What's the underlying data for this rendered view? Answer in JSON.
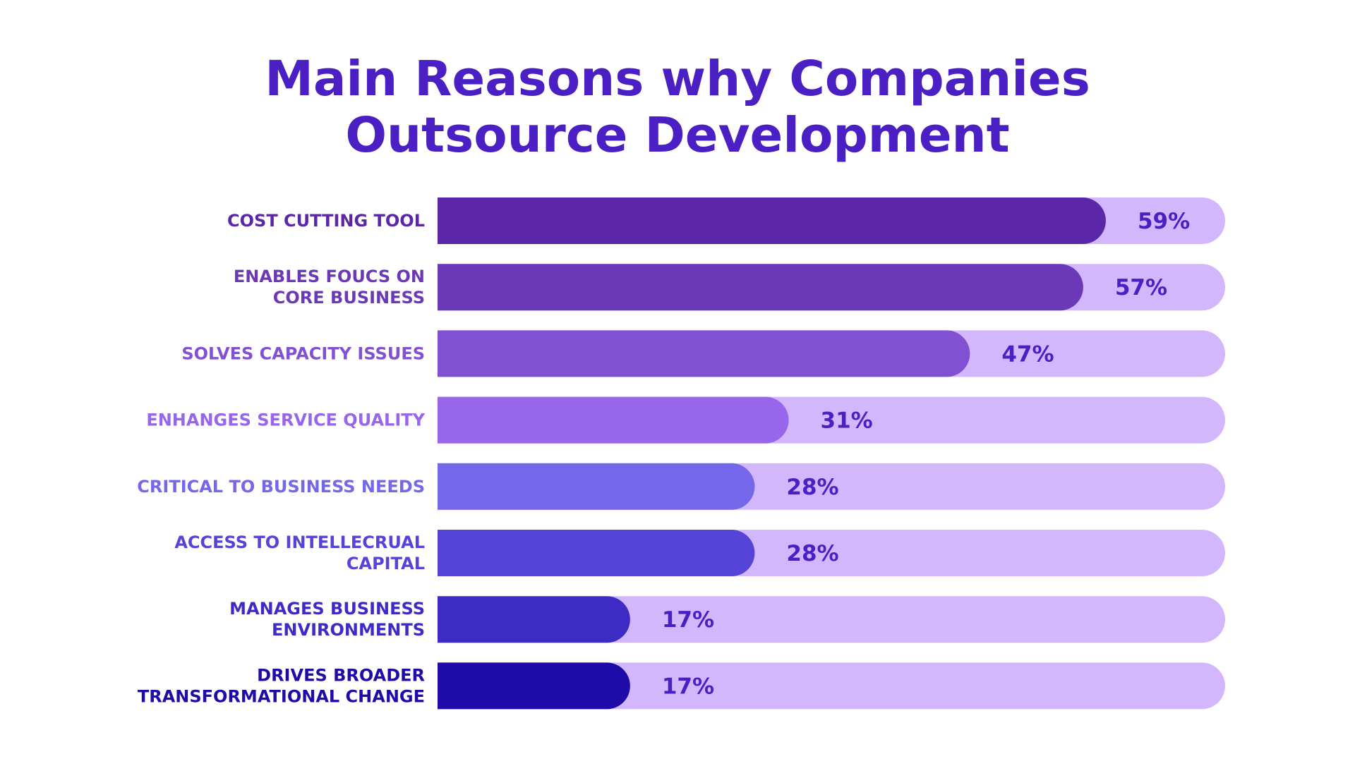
{
  "chart_data": {
    "type": "bar",
    "orientation": "horizontal",
    "title_lines": [
      "Main Reasons why Companies",
      "Outsource Development"
    ],
    "categories": [
      [
        "COST CUTTING TOOL"
      ],
      [
        "ENABLES FOUCS ON",
        "CORE BUSINESS"
      ],
      [
        "SOLVES CAPACITY ISSUES"
      ],
      [
        "ENHANGES SERVICE QUALITY"
      ],
      [
        "CRITICAL TO BUSINESS NEEDS"
      ],
      [
        "ACCESS TO INTELLECRUAL",
        "CAPITAL"
      ],
      [
        "MANAGES BUSINESS",
        "ENVIRONMENTS"
      ],
      [
        "DRIVES BROADER",
        "TRANSFORMATIONAL CHANGE"
      ]
    ],
    "values": [
      59,
      57,
      47,
      31,
      28,
      28,
      17,
      17
    ],
    "value_labels": [
      "59%",
      "57%",
      "47%",
      "31%",
      "28%",
      "28%",
      "17%",
      "17%"
    ],
    "bar_colors": [
      "#5b27a8",
      "#6b38b8",
      "#8251d3",
      "#9866ea",
      "#7567e9",
      "#5643d8",
      "#3e2bc5",
      "#1f0ca8"
    ],
    "label_colors": [
      "#5b27a8",
      "#6b38b8",
      "#8251d3",
      "#9866ea",
      "#7567e9",
      "#5643d8",
      "#3e2bc5",
      "#1f0ca8"
    ],
    "track_color": "#d3b7fd",
    "value_label_color": "#4a1fc4",
    "title_color": "#4a1fc4"
  }
}
